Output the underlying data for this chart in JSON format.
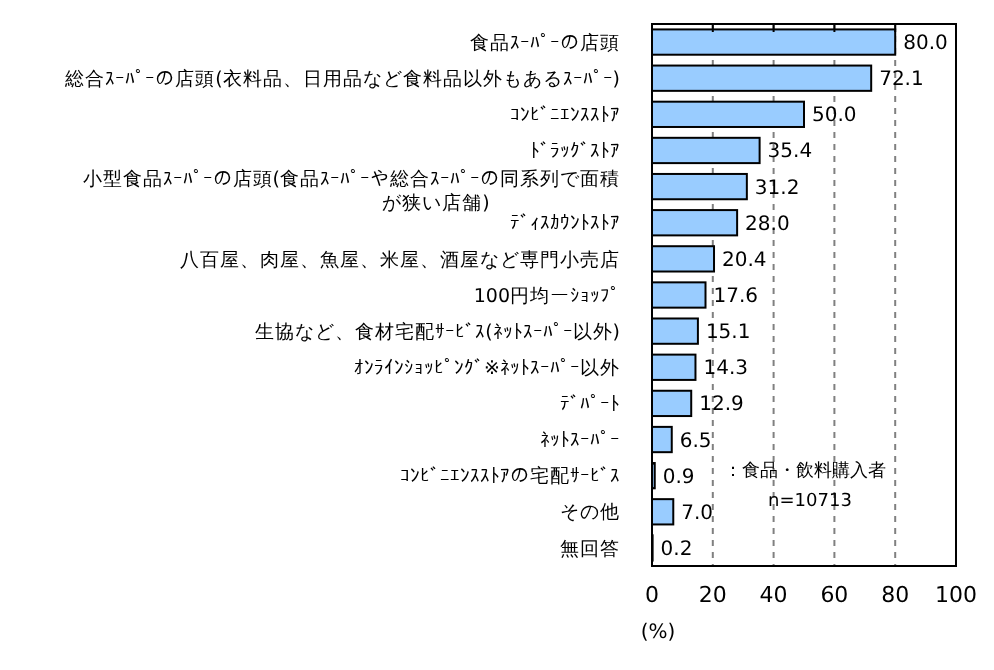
{
  "chart_data": {
    "type": "bar",
    "orientation": "horizontal",
    "categories": [
      "食品ｽｰﾊﾟｰの店頭",
      "総合ｽｰﾊﾟｰの店頭(衣料品、日用品など食料品以外もあるｽｰﾊﾟｰ)",
      "ｺﾝﾋﾞﾆｴﾝｽｽﾄｱ",
      "ﾄﾞﾗｯｸﾞｽﾄｱ",
      "小型食品ｽｰﾊﾟｰの店頭(食品ｽｰﾊﾟｰや総合ｽｰﾊﾟｰの同系列で面積が狭い店舗)",
      "ﾃﾞｨｽｶｳﾝﾄｽﾄｱ",
      "八百屋、肉屋、魚屋、米屋、酒屋など専門小売店",
      "100円均ーｼｮｯﾌﾟ",
      "生協など、食材宅配ｻｰﾋﾞｽ(ﾈｯﾄｽｰﾊﾟｰ以外)",
      "ｵﾝﾗｲﾝｼｮｯﾋﾟﾝｸﾞ※ﾈｯﾄｽｰﾊﾟｰ以外",
      "ﾃﾞﾊﾟｰﾄ",
      "ﾈｯﾄｽｰﾊﾟｰ",
      "ｺﾝﾋﾞﾆｴﾝｽｽﾄｱの宅配ｻｰﾋﾞｽ",
      "その他",
      "無回答"
    ],
    "values": [
      80.0,
      72.1,
      50.0,
      35.4,
      31.2,
      28.0,
      20.4,
      17.6,
      15.1,
      14.3,
      12.9,
      6.5,
      0.9,
      7.0,
      0.2
    ],
    "value_labels": [
      "80.0",
      "72.1",
      "50.0",
      "35.4",
      "31.2",
      "28.0",
      "20.4",
      "17.6",
      "15.1",
      "14.3",
      "12.9",
      "6.5",
      "0.9",
      "7.0",
      "0.2"
    ],
    "color": "#99ccff",
    "xlim": [
      0,
      100
    ],
    "xticks": [
      0,
      20,
      40,
      60,
      80,
      100
    ],
    "grid": "x",
    "xlabel": "(%)",
    "annotations": [
      "：食品・飲料購入者",
      "n=10713"
    ]
  }
}
